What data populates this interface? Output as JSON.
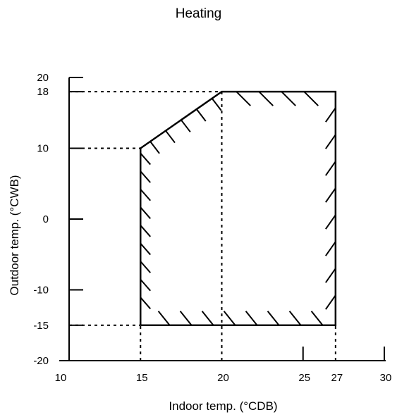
{
  "chart_data": {
    "type": "area",
    "title": "Heating",
    "xlabel": "Indoor temp. (°CDB)",
    "ylabel": "Outdoor temp. (°CWB)",
    "x_ticks": [
      10,
      15,
      20,
      25,
      27,
      30
    ],
    "y_ticks": [
      -20,
      -15,
      -10,
      0,
      10,
      18,
      20
    ],
    "xlim": [
      10,
      30
    ],
    "ylim": [
      -20,
      20
    ],
    "operating_range": {
      "x": [
        15,
        15,
        20,
        27,
        27,
        15
      ],
      "y": [
        -15,
        10,
        18,
        18,
        -15,
        -15
      ]
    },
    "reference_lines": [
      {
        "axis": "y",
        "value": 18
      },
      {
        "axis": "y",
        "value": 10
      },
      {
        "axis": "y",
        "value": -15
      },
      {
        "axis": "x",
        "value": 15
      },
      {
        "axis": "x",
        "value": 20
      },
      {
        "axis": "x",
        "value": 27
      }
    ]
  }
}
